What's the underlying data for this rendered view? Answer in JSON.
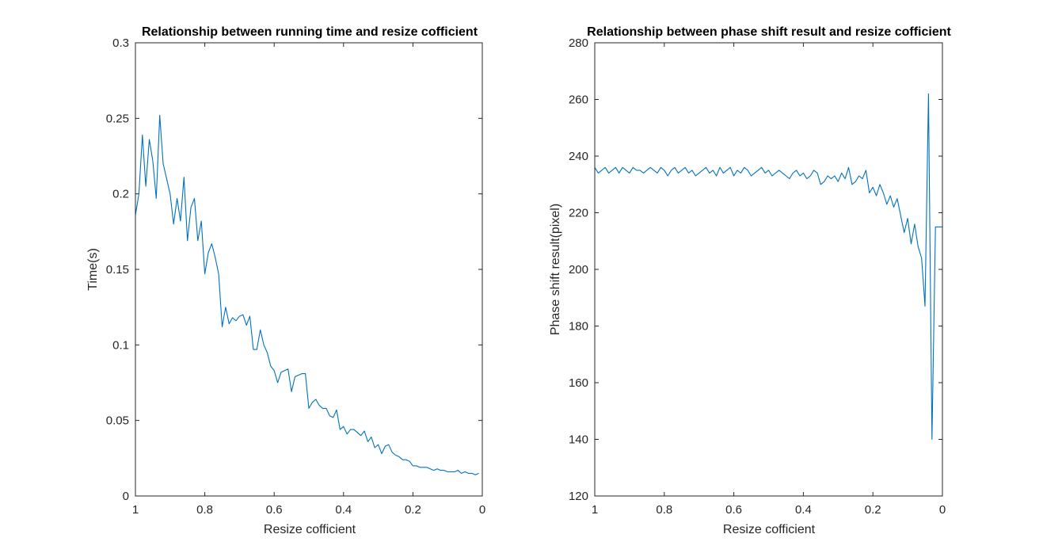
{
  "colors": {
    "line": "#0072BD",
    "axis": "#262626",
    "background": "#ffffff"
  },
  "chart_data": [
    {
      "type": "line",
      "title": "Relationship between running time and resize cofficient",
      "xlabel": "Resize cofficient",
      "ylabel": "Time(s)",
      "xlim": [
        1,
        0
      ],
      "x_reversed": true,
      "ylim": [
        0,
        0.3
      ],
      "xticks": [
        1,
        0.8,
        0.6,
        0.4,
        0.2,
        0
      ],
      "xtick_labels": [
        "1",
        "0.8",
        "0.6",
        "0.4",
        "0.2",
        "0"
      ],
      "yticks": [
        0,
        0.05,
        0.1,
        0.15,
        0.2,
        0.25,
        0.3
      ],
      "ytick_labels": [
        "0",
        "0.05",
        "0.1",
        "0.15",
        "0.2",
        "0.25",
        "0.3"
      ],
      "grid": false,
      "series": [
        {
          "x": [
            1,
            0.99,
            0.98,
            0.97,
            0.96,
            0.95,
            0.94,
            0.93,
            0.92,
            0.91,
            0.9,
            0.89,
            0.88,
            0.87,
            0.86,
            0.85,
            0.84,
            0.83,
            0.82,
            0.81,
            0.8,
            0.79,
            0.78,
            0.77,
            0.76,
            0.75,
            0.74,
            0.73,
            0.72,
            0.71,
            0.7,
            0.69,
            0.68,
            0.67,
            0.66,
            0.65,
            0.64,
            0.63,
            0.62,
            0.61,
            0.6,
            0.59,
            0.58,
            0.57,
            0.56,
            0.55,
            0.54,
            0.53,
            0.52,
            0.51,
            0.5,
            0.49,
            0.48,
            0.47,
            0.46,
            0.45,
            0.44,
            0.43,
            0.42,
            0.41,
            0.4,
            0.39,
            0.38,
            0.37,
            0.36,
            0.35,
            0.34,
            0.33,
            0.32,
            0.31,
            0.3,
            0.29,
            0.28,
            0.27,
            0.26,
            0.25,
            0.24,
            0.23,
            0.22,
            0.21,
            0.2,
            0.19,
            0.18,
            0.17,
            0.16,
            0.15,
            0.14,
            0.13,
            0.12,
            0.11,
            0.1,
            0.09,
            0.08,
            0.07,
            0.06,
            0.05,
            0.04,
            0.03,
            0.02,
            0.01
          ],
          "values": [
            0.186,
            0.2,
            0.239,
            0.205,
            0.236,
            0.222,
            0.197,
            0.252,
            0.22,
            0.21,
            0.2,
            0.18,
            0.197,
            0.182,
            0.211,
            0.169,
            0.191,
            0.197,
            0.169,
            0.182,
            0.147,
            0.161,
            0.167,
            0.158,
            0.147,
            0.112,
            0.125,
            0.114,
            0.118,
            0.116,
            0.119,
            0.12,
            0.113,
            0.119,
            0.097,
            0.097,
            0.11,
            0.1,
            0.095,
            0.086,
            0.083,
            0.075,
            0.082,
            0.083,
            0.084,
            0.069,
            0.079,
            0.08,
            0.081,
            0.081,
            0.058,
            0.062,
            0.064,
            0.06,
            0.058,
            0.058,
            0.053,
            0.052,
            0.057,
            0.044,
            0.046,
            0.041,
            0.044,
            0.044,
            0.042,
            0.04,
            0.043,
            0.036,
            0.039,
            0.032,
            0.034,
            0.028,
            0.033,
            0.034,
            0.029,
            0.027,
            0.026,
            0.024,
            0.024,
            0.023,
            0.02,
            0.02,
            0.019,
            0.019,
            0.019,
            0.018,
            0.017,
            0.018,
            0.017,
            0.017,
            0.016,
            0.016,
            0.016,
            0.017,
            0.015,
            0.016,
            0.015,
            0.015,
            0.014,
            0.015
          ]
        }
      ]
    },
    {
      "type": "line",
      "title": "Relationship between phase shift result and resize cofficient",
      "xlabel": "Resize cofficient",
      "ylabel": "Phase shift result(pixel)",
      "xlim": [
        1,
        0
      ],
      "x_reversed": true,
      "ylim": [
        120,
        280
      ],
      "xticks": [
        1,
        0.8,
        0.6,
        0.4,
        0.2,
        0
      ],
      "xtick_labels": [
        "1",
        "0.8",
        "0.6",
        "0.4",
        "0.2",
        "0"
      ],
      "yticks": [
        120,
        140,
        160,
        180,
        200,
        220,
        240,
        260,
        280
      ],
      "ytick_labels": [
        "120",
        "140",
        "160",
        "180",
        "200",
        "220",
        "240",
        "260",
        "280"
      ],
      "grid": false,
      "series": [
        {
          "x": [
            1,
            0.99,
            0.98,
            0.97,
            0.96,
            0.95,
            0.94,
            0.93,
            0.92,
            0.91,
            0.9,
            0.89,
            0.88,
            0.87,
            0.86,
            0.85,
            0.84,
            0.83,
            0.82,
            0.81,
            0.8,
            0.79,
            0.78,
            0.77,
            0.76,
            0.75,
            0.74,
            0.73,
            0.72,
            0.71,
            0.7,
            0.69,
            0.68,
            0.67,
            0.66,
            0.65,
            0.64,
            0.63,
            0.62,
            0.61,
            0.6,
            0.59,
            0.58,
            0.57,
            0.56,
            0.55,
            0.54,
            0.53,
            0.52,
            0.51,
            0.5,
            0.49,
            0.48,
            0.47,
            0.46,
            0.45,
            0.44,
            0.43,
            0.42,
            0.41,
            0.4,
            0.39,
            0.38,
            0.37,
            0.36,
            0.35,
            0.34,
            0.33,
            0.32,
            0.31,
            0.3,
            0.29,
            0.28,
            0.27,
            0.26,
            0.25,
            0.24,
            0.23,
            0.22,
            0.21,
            0.2,
            0.19,
            0.18,
            0.17,
            0.16,
            0.15,
            0.14,
            0.13,
            0.12,
            0.11,
            0.1,
            0.09,
            0.08,
            0.07,
            0.06,
            0.05,
            0.04,
            0.03,
            0.02,
            0.01,
            0
          ],
          "values": [
            236,
            234,
            235,
            236,
            234,
            235,
            236,
            234,
            236,
            235,
            234,
            236,
            235,
            235,
            234,
            235,
            236,
            235,
            234,
            236,
            235,
            233,
            235,
            236,
            234,
            235,
            236,
            234,
            235,
            233,
            234,
            235,
            236,
            234,
            235,
            233,
            236,
            234,
            235,
            236,
            233,
            235,
            234,
            236,
            235,
            233,
            234,
            235,
            236,
            234,
            235,
            233,
            234,
            235,
            234,
            233,
            232,
            234,
            235,
            233,
            234,
            232,
            233,
            235,
            234,
            230,
            231,
            233,
            232,
            233,
            231,
            234,
            232,
            236,
            230,
            231,
            233,
            232,
            235,
            227,
            229,
            226,
            230,
            227,
            223,
            226,
            222,
            225,
            219,
            213,
            218,
            209,
            216,
            208,
            204,
            187,
            262,
            140,
            215,
            215,
            215
          ]
        }
      ]
    }
  ]
}
